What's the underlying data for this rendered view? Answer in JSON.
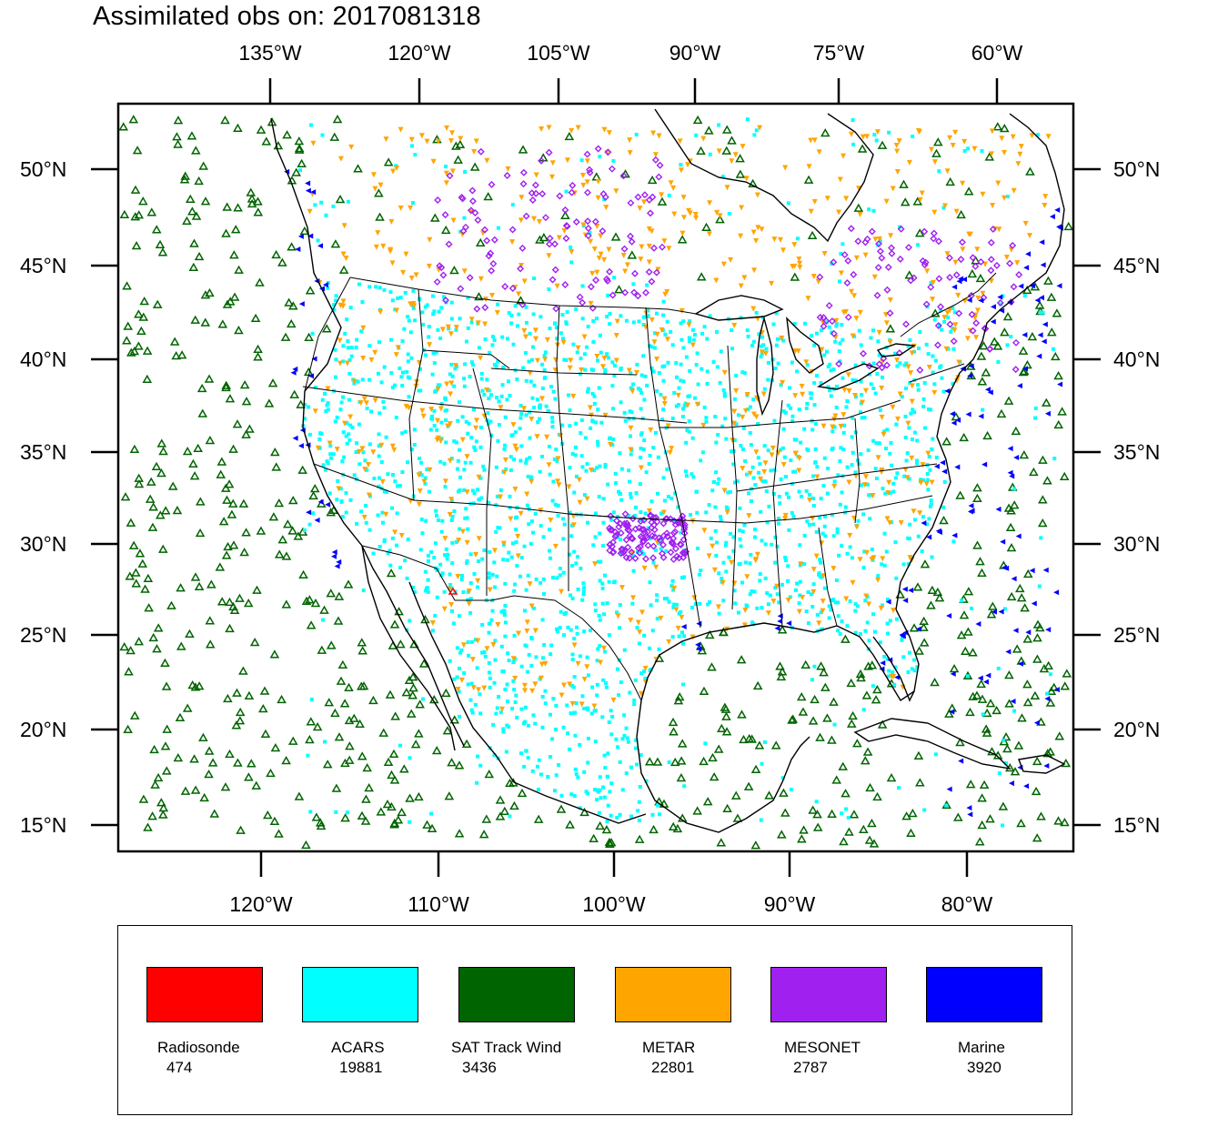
{
  "title": "Assimilated obs on: 2017081318",
  "map": {
    "top_lon_labels": [
      "135°W",
      "120°W",
      "105°W",
      "90°W",
      "75°W",
      "60°W"
    ],
    "bottom_lon_labels": [
      "120°W",
      "110°W",
      "100°W",
      "90°W",
      "80°W"
    ],
    "lat_labels": [
      "50°N",
      "45°N",
      "40°N",
      "35°N",
      "30°N",
      "25°N",
      "20°N",
      "15°N"
    ],
    "colors": {
      "Radiosonde": "#ff0000",
      "ACARS": "#00ffff",
      "SAT Track Wind": "#006400",
      "METAR": "#ffa500",
      "MESONET": "#a020f0",
      "Marine": "#0000ff"
    },
    "coastline_color": "#000000",
    "background": "#ffffff"
  },
  "legend": {
    "items": [
      {
        "label": "Radiosonde",
        "count": "474",
        "color": "#ff0000"
      },
      {
        "label": "ACARS",
        "count": "19881",
        "color": "#00ffff"
      },
      {
        "label": "SAT Track Wind",
        "count": "3436",
        "color": "#006400"
      },
      {
        "label": "METAR",
        "count": "22801",
        "color": "#ffa500"
      },
      {
        "label": "MESONET",
        "count": "2787",
        "color": "#a020f0"
      },
      {
        "label": "Marine",
        "count": "3920",
        "color": "#0000ff"
      }
    ]
  }
}
